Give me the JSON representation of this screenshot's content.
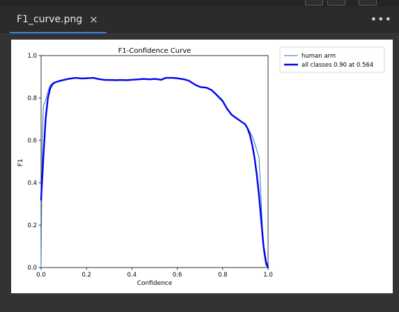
{
  "tab": {
    "title": "F1_curve.png",
    "close_glyph": "×"
  },
  "more_glyph": "•••",
  "chart_data": {
    "type": "line",
    "title": "F1-Confidence Curve",
    "xlabel": "Confidence",
    "ylabel": "F1",
    "xlim": [
      0.0,
      1.0
    ],
    "ylim": [
      0.0,
      1.0
    ],
    "xticks": [
      "0.0",
      "0.2",
      "0.4",
      "0.6",
      "0.8",
      "1.0"
    ],
    "yticks": [
      "0.0",
      "0.2",
      "0.4",
      "0.6",
      "0.8",
      "1.0"
    ],
    "grid": false,
    "legend_position": "outside-right",
    "series": [
      {
        "name": "human arm",
        "color": "#1f77b4",
        "width": 1,
        "x": [
          0.0,
          0.005,
          0.01,
          0.02,
          0.03,
          0.04,
          0.05,
          0.06,
          0.08,
          0.1,
          0.12,
          0.15,
          0.18,
          0.2,
          0.23,
          0.25,
          0.28,
          0.3,
          0.33,
          0.35,
          0.38,
          0.4,
          0.43,
          0.45,
          0.48,
          0.5,
          0.53,
          0.55,
          0.58,
          0.6,
          0.63,
          0.65,
          0.68,
          0.7,
          0.73,
          0.75,
          0.77,
          0.8,
          0.82,
          0.84,
          0.86,
          0.88,
          0.9,
          0.91,
          0.92,
          0.93,
          0.94,
          0.95,
          0.96,
          0.97,
          0.98,
          0.99,
          1.0
        ],
        "y": [
          0.0,
          0.6,
          0.76,
          0.79,
          0.83,
          0.86,
          0.87,
          0.875,
          0.88,
          0.885,
          0.89,
          0.895,
          0.89,
          0.895,
          0.895,
          0.89,
          0.885,
          0.885,
          0.884,
          0.885,
          0.884,
          0.886,
          0.888,
          0.89,
          0.888,
          0.89,
          0.886,
          0.895,
          0.895,
          0.893,
          0.888,
          0.882,
          0.862,
          0.852,
          0.848,
          0.84,
          0.82,
          0.79,
          0.75,
          0.72,
          0.705,
          0.69,
          0.675,
          0.66,
          0.64,
          0.62,
          0.59,
          0.555,
          0.52,
          0.3,
          0.08,
          0.01,
          0.0
        ]
      },
      {
        "name": "all classes 0.90 at 0.564",
        "color": "#0000ee",
        "width": 2.4,
        "x": [
          0.0,
          0.005,
          0.01,
          0.02,
          0.03,
          0.04,
          0.05,
          0.06,
          0.08,
          0.1,
          0.12,
          0.15,
          0.18,
          0.2,
          0.23,
          0.25,
          0.28,
          0.3,
          0.33,
          0.35,
          0.38,
          0.4,
          0.43,
          0.45,
          0.48,
          0.5,
          0.53,
          0.55,
          0.58,
          0.6,
          0.63,
          0.65,
          0.68,
          0.7,
          0.73,
          0.75,
          0.77,
          0.8,
          0.82,
          0.84,
          0.86,
          0.88,
          0.9,
          0.91,
          0.92,
          0.93,
          0.94,
          0.95,
          0.96,
          0.97,
          0.98,
          0.99,
          1.0
        ],
        "y": [
          0.32,
          0.42,
          0.52,
          0.7,
          0.8,
          0.845,
          0.865,
          0.873,
          0.88,
          0.885,
          0.89,
          0.895,
          0.892,
          0.893,
          0.895,
          0.89,
          0.885,
          0.885,
          0.884,
          0.885,
          0.884,
          0.886,
          0.888,
          0.89,
          0.888,
          0.89,
          0.886,
          0.895,
          0.895,
          0.893,
          0.888,
          0.882,
          0.862,
          0.852,
          0.848,
          0.838,
          0.818,
          0.785,
          0.748,
          0.72,
          0.705,
          0.69,
          0.675,
          0.655,
          0.625,
          0.58,
          0.52,
          0.44,
          0.34,
          0.22,
          0.1,
          0.03,
          0.0
        ]
      }
    ]
  }
}
